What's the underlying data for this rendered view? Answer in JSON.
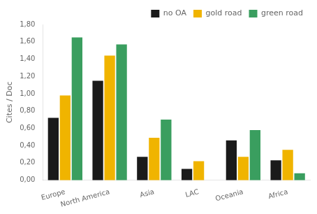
{
  "chart_data": {
    "type": "bar",
    "categories": [
      "Europe",
      "North America",
      "Asia",
      "LAC",
      "Oceania",
      "Africa"
    ],
    "series": [
      {
        "name": "no OA",
        "color": "#1a1a1a",
        "values": [
          0.72,
          1.15,
          0.27,
          0.13,
          0.46,
          0.23
        ]
      },
      {
        "name": "gold road",
        "color": "#f0b400",
        "values": [
          0.98,
          1.44,
          0.49,
          0.22,
          0.27,
          0.35
        ]
      },
      {
        "name": "green road",
        "color": "#3a9e5f",
        "values": [
          1.65,
          1.57,
          0.7,
          0.0,
          0.58,
          0.08
        ]
      }
    ],
    "ylabel": "Cites / Doc",
    "ylim": [
      0.0,
      1.8
    ],
    "yticks": [
      {
        "value": 0.0,
        "label": "0,00"
      },
      {
        "value": 0.2,
        "label": "0,20"
      },
      {
        "value": 0.4,
        "label": "0,40"
      },
      {
        "value": 0.6,
        "label": "0,60"
      },
      {
        "value": 0.8,
        "label": "0,80"
      },
      {
        "value": 1.0,
        "label": "1,00"
      },
      {
        "value": 1.2,
        "label": "1,20"
      },
      {
        "value": 1.4,
        "label": "1,40"
      },
      {
        "value": 1.6,
        "label": "1,60"
      },
      {
        "value": 1.8,
        "label": "1,80"
      }
    ],
    "grid": false,
    "legend": "upper right"
  }
}
